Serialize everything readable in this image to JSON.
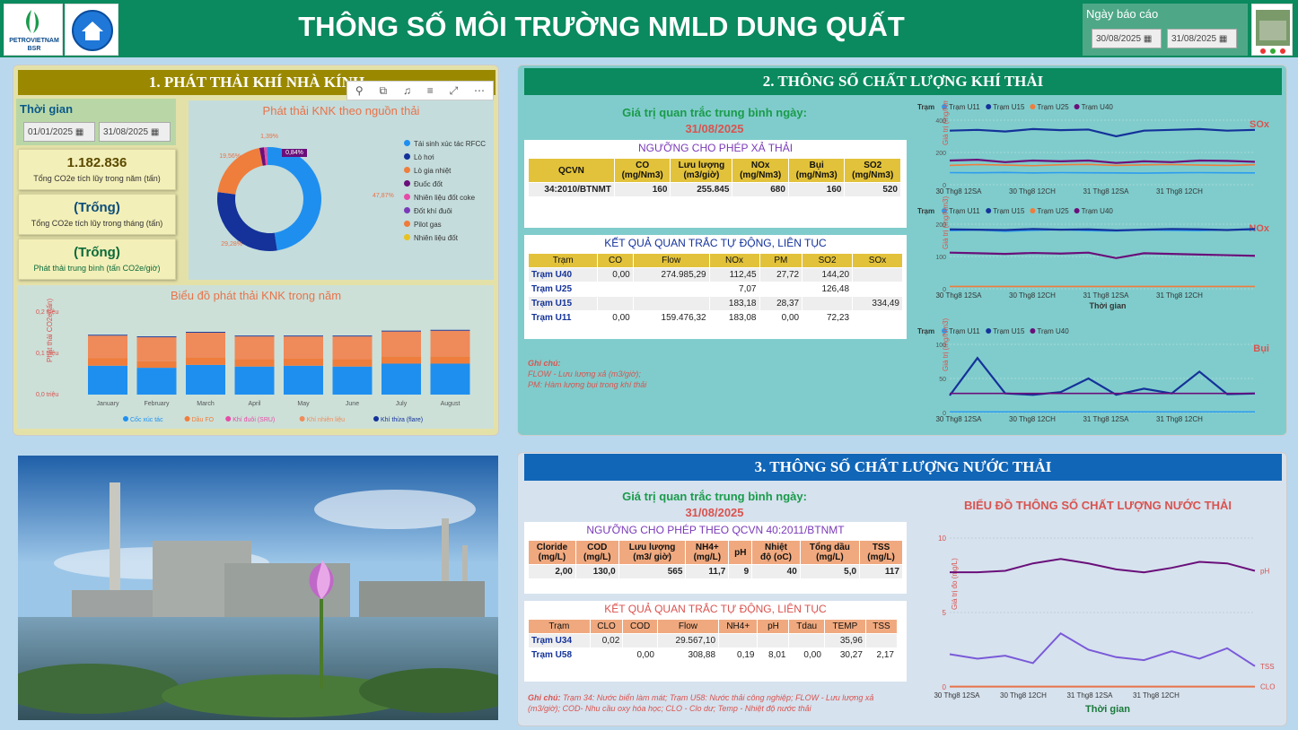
{
  "header": {
    "title": "THÔNG SỐ MÔI TRƯỜNG NMLD DUNG QUẤT",
    "logo_text_1": "PETROVIETNAM",
    "logo_text_2": "BSR",
    "report_date_label": "Ngày báo cáo",
    "report_date_from": "30/08/2025",
    "report_date_to": "31/08/2025"
  },
  "colors": {
    "header": "#0a8a5e",
    "section1": "#9a8900",
    "section2": "#0a8a5e",
    "section3": "#1166b7",
    "tableHeader": "#e2c23a",
    "waterHeader": "#f0a97f"
  },
  "s1": {
    "title": "1. PHÁT THẢI KHÍ NHÀ KÍNH",
    "time_label": "Thời gian",
    "date_from": "01/01/2025",
    "date_to": "31/08/2025",
    "kpi1_value": "1.182.836",
    "kpi1_label": "Tổng CO2e tích lũy trong năm (tấn)",
    "kpi2_value": "(Trống)",
    "kpi2_label": "Tổng CO2e tích lũy trong tháng (tấn)",
    "kpi3_value": "(Trống)",
    "kpi3_label": "Phát thải trung bình (tấn CO2e/giờ)",
    "donut_title": "Phát thải KNK theo nguồn thải",
    "donut_labels": [
      "47,87%",
      "29,28%",
      "19,56%",
      "1,39%",
      "0,84%"
    ],
    "legend": [
      {
        "name": "Tái sinh xúc tác RFCC",
        "color": "#1f8fef"
      },
      {
        "name": "Lò hơi",
        "color": "#14329a"
      },
      {
        "name": "Lò gia nhiệt",
        "color": "#ef7d3c"
      },
      {
        "name": "Đuốc đốt",
        "color": "#6a0f7a"
      },
      {
        "name": "Nhiên liệu đốt coke",
        "color": "#e64ba7"
      },
      {
        "name": "Đốt khí đuôi",
        "color": "#7a3ab8"
      },
      {
        "name": "Pilot gas",
        "color": "#f07a3a"
      },
      {
        "name": "Nhiên liệu đốt",
        "color": "#e8c21f"
      }
    ],
    "bar_title": "Biểu đồ phát thải KNK trong năm",
    "bar_ylabel": "Phát thải CO2e(tấn)",
    "bar_yticks": [
      "0,2 triệu",
      "0,1 triệu",
      "0,0 triệu"
    ],
    "bar_legend": [
      {
        "name": "Cốc xúc tác",
        "color": "#1f8fef"
      },
      {
        "name": "Dầu FO",
        "color": "#ef7d3c"
      },
      {
        "name": "Khí đuôi (SRU)",
        "color": "#e64ba7"
      },
      {
        "name": "Khí nhiên liệu",
        "color": "#f08c5a"
      },
      {
        "name": "Khí thừa (flare)",
        "color": "#14329a"
      }
    ],
    "toolbar_icons": [
      "pin-icon",
      "copy-icon",
      "bell-icon",
      "filter-icon",
      "expand-icon",
      "more-icon"
    ]
  },
  "chart_data": [
    {
      "type": "pie",
      "title": "Phát thải KNK theo nguồn thải",
      "labels": [
        "Tái sinh xúc tác RFCC",
        "Lò hơi",
        "Lò gia nhiệt",
        "Đuốc đốt",
        "Nhiên liệu đốt coke"
      ],
      "values": [
        47.87,
        29.28,
        19.56,
        1.39,
        0.84
      ]
    },
    {
      "type": "bar",
      "title": "Biểu đồ phát thải KNK trong năm",
      "categories": [
        "January",
        "February",
        "March",
        "April",
        "May",
        "June",
        "July",
        "August"
      ],
      "series": [
        {
          "name": "Cốc xúc tác",
          "values": [
            0.07,
            0.065,
            0.072,
            0.068,
            0.07,
            0.068,
            0.075,
            0.075
          ]
        },
        {
          "name": "Dầu FO",
          "values": [
            0.018,
            0.016,
            0.018,
            0.018,
            0.017,
            0.018,
            0.018,
            0.018
          ]
        },
        {
          "name": "Khí nhiên liệu",
          "values": [
            0.055,
            0.058,
            0.06,
            0.055,
            0.054,
            0.055,
            0.06,
            0.062
          ]
        },
        {
          "name": "Khí thừa (flare)",
          "values": [
            0.002,
            0.002,
            0.002,
            0.002,
            0.002,
            0.002,
            0.002,
            0.002
          ]
        }
      ],
      "ylabel": "Phát thải CO2e(tấn)",
      "ylim": [
        0,
        0.2
      ]
    },
    {
      "type": "line",
      "title": "SOx",
      "xlabel": "",
      "ylabel": "Giá trị (mg/Nm3)",
      "ylim": [
        0,
        400
      ],
      "xticks": [
        "30 Thg8 12SA",
        "30 Thg8 12CH",
        "31 Thg8 12SA",
        "31 Thg8 12CH"
      ],
      "series": [
        {
          "name": "Trạm U11",
          "values": [
            75,
            74,
            76,
            73,
            75,
            74,
            73,
            72,
            74,
            75,
            74,
            73
          ]
        },
        {
          "name": "Trạm U15",
          "values": [
            335,
            340,
            330,
            345,
            338,
            342,
            300,
            335,
            340,
            345,
            335,
            340
          ]
        },
        {
          "name": "Trạm U25",
          "values": [
            120,
            125,
            122,
            118,
            124,
            126,
            120,
            123,
            125,
            122,
            120,
            124
          ]
        },
        {
          "name": "Trạm U40",
          "values": [
            150,
            155,
            140,
            150,
            145,
            150,
            135,
            145,
            140,
            150,
            148,
            142
          ]
        }
      ]
    },
    {
      "type": "line",
      "title": "NOx",
      "xlabel": "Thời gian",
      "ylabel": "Giá trị (mg/Nm3)",
      "ylim": [
        0,
        200
      ],
      "xticks": [
        "30 Thg8 12SA",
        "30 Thg8 12CH",
        "31 Thg8 12SA",
        "31 Thg8 12CH"
      ],
      "series": [
        {
          "name": "Trạm U11",
          "values": [
            180,
            182,
            178,
            181,
            183,
            180,
            179,
            182,
            181,
            180,
            183,
            182
          ]
        },
        {
          "name": "Trạm U15",
          "values": [
            184,
            183,
            182,
            185,
            183,
            184,
            181,
            183,
            185,
            184,
            182,
            185
          ]
        },
        {
          "name": "Trạm U25",
          "values": [
            7,
            7,
            7,
            7,
            7,
            7,
            7,
            7,
            7,
            7,
            7,
            7
          ]
        },
        {
          "name": "Trạm U40",
          "values": [
            112,
            110,
            108,
            111,
            109,
            112,
            95,
            110,
            108,
            106,
            104,
            102
          ]
        }
      ]
    },
    {
      "type": "line",
      "title": "Bụi",
      "xlabel": "",
      "ylabel": "Giá trị (mg/Nm3)",
      "ylim": [
        0,
        100
      ],
      "xticks": [
        "30 Thg8 12SA",
        "30 Thg8 12CH",
        "31 Thg8 12SA",
        "31 Thg8 12CH"
      ],
      "series": [
        {
          "name": "Trạm U11",
          "values": [
            1,
            1,
            1,
            1,
            1,
            1,
            1,
            1,
            1,
            1,
            1,
            1
          ]
        },
        {
          "name": "Trạm U15",
          "values": [
            25,
            80,
            28,
            26,
            30,
            50,
            26,
            35,
            28,
            60,
            27,
            28
          ]
        },
        {
          "name": "Trạm U40",
          "values": [
            28,
            28,
            28,
            28,
            28,
            28,
            28,
            28,
            28,
            28,
            28,
            28
          ]
        }
      ]
    },
    {
      "type": "line",
      "title": "BIỂU ĐỒ THÔNG SỐ CHẤT LƯỢNG NƯỚC THẢI",
      "xlabel": "Thời gian",
      "ylabel": "Giá trị đo (mg/L)",
      "ylim": [
        0,
        10
      ],
      "xticks": [
        "30 Thg8 12SA",
        "30 Thg8 12CH",
        "31 Thg8 12SA",
        "31 Thg8 12CH"
      ],
      "series": [
        {
          "name": "pH",
          "values": [
            7.7,
            7.7,
            7.8,
            8.3,
            8.6,
            8.3,
            7.9,
            7.7,
            8.0,
            8.4,
            8.3,
            7.8
          ]
        },
        {
          "name": "TSS",
          "values": [
            2.2,
            1.9,
            2.1,
            1.6,
            3.6,
            2.5,
            2.0,
            1.8,
            2.4,
            1.9,
            2.6,
            1.4
          ]
        },
        {
          "name": "CLO",
          "values": [
            0.02,
            0.02,
            0.02,
            0.02,
            0.02,
            0.02,
            0.02,
            0.02,
            0.02,
            0.02,
            0.02,
            0.02
          ]
        }
      ]
    }
  ],
  "s2": {
    "title": "2. THÔNG SỐ CHẤT LƯỢNG KHÍ THẢI",
    "avg_label": "Giá trị quan trắc trung bình ngày:",
    "avg_date": "31/08/2025",
    "limit_title": "NGƯỠNG CHO PHÉP XẢ THẢI",
    "limit_headers": [
      "QCVN",
      "CO\n(mg/Nm3)",
      "Lưu lượng\n(m3/giờ)",
      "NOx\n(mg/Nm3)",
      "Bụi\n(mg/Nm3)",
      "SO2\n(mg/Nm3)"
    ],
    "limit_row": [
      "34:2010/BTNMT",
      "160",
      "255.845",
      "680",
      "160",
      "520"
    ],
    "auto_title": "KẾT QUẢ QUAN TRẮC TỰ ĐỘNG, LIÊN TỤC",
    "auto_headers": [
      "Trạm",
      "CO",
      "Flow",
      "NOx",
      "PM",
      "SO2",
      "SOx"
    ],
    "auto_rows": [
      [
        "Trạm U40",
        "0,00",
        "274.985,29",
        "112,45",
        "27,72",
        "144,20",
        ""
      ],
      [
        "Trạm U25",
        "",
        "",
        "7,07",
        "",
        "126,48",
        ""
      ],
      [
        "Trạm U15",
        "",
        "",
        "183,18",
        "28,37",
        "",
        "334,49"
      ],
      [
        "Trạm U11",
        "0,00",
        "159.476,32",
        "183,08",
        "0,00",
        "72,23",
        ""
      ]
    ],
    "note_title": "Ghi chú:",
    "note_1": "FLOW - Lưu lượng xả (m3/giờ);",
    "note_2": "PM: Hàm lượng bụi trong khí thải",
    "legend_label": "Trạm",
    "station_colors": {
      "U11": "#2b9cf0",
      "U15": "#14329a",
      "U25": "#ef7d3c",
      "U40": "#6a0f7a"
    },
    "sox_title": "SOx",
    "nox_title": "NOx",
    "dust_title": "Bụi",
    "ylabel": "Giá trị (mg/Nm3)",
    "xlabel": "Thời gian",
    "legend_sox": [
      "Trạm U11",
      "Trạm U15",
      "Trạm U25",
      "Trạm U40"
    ],
    "legend_nox": [
      "Trạm U11",
      "Trạm U15",
      "Trạm U25",
      "Trạm U40"
    ],
    "legend_dust": [
      "Trạm U11",
      "Trạm U15",
      "Trạm U40"
    ],
    "xticks": [
      "30 Thg8 12SA",
      "30 Thg8 12CH",
      "31 Thg8 12SA",
      "31 Thg8 12CH"
    ],
    "sox_yticks": [
      "400",
      "200",
      "0"
    ],
    "nox_yticks": [
      "200",
      "100",
      "0"
    ],
    "dust_yticks": [
      "100",
      "50",
      "0"
    ]
  },
  "s3": {
    "title": "3. THÔNG SỐ CHẤT LƯỢNG NƯỚC THẢI",
    "avg_label": "Giá trị quan trắc trung bình ngày:",
    "avg_date": "31/08/2025",
    "limit_title": "NGƯỠNG CHO PHÉP THEO QCVN 40:2011/BTNMT",
    "limit_headers": [
      "Cloride\n(mg/L)",
      "COD\n(mg/L)",
      "Lưu lượng\n(m3/ giờ)",
      "NH4+\n(mg/L)",
      "pH",
      "Nhiệt\nđộ (oC)",
      "Tổng dầu\n(mg/L)",
      "TSS\n(mg/L)"
    ],
    "limit_row": [
      "2,00",
      "130,0",
      "565",
      "11,7",
      "9",
      "40",
      "5,0",
      "117"
    ],
    "auto_title": "KẾT QUẢ QUAN TRẮC TỰ ĐỘNG, LIÊN TỤC",
    "auto_headers": [
      "Trạm",
      "CLO",
      "COD",
      "Flow",
      "NH4+",
      "pH",
      "Tdau",
      "TEMP",
      "TSS"
    ],
    "auto_rows": [
      [
        "Trạm U34",
        "0,02",
        "",
        "29.567,10",
        "",
        "",
        "",
        "35,96",
        ""
      ],
      [
        "Trạm U58",
        "",
        "0,00",
        "308,88",
        "0,19",
        "8,01",
        "0,00",
        "30,27",
        "2,17"
      ]
    ],
    "note_title": "Ghi chú:",
    "note_text": "Trạm 34: Nước biển làm mát; Trạm U58: Nước thải công nghiệp; FLOW - Lưu lượng xả (m3/giờ);  COD- Nhu cầu oxy hóa học; CLO - Clo dư; Temp - Nhiệt độ nước thải",
    "chart_title": "BIỂU ĐỒ THÔNG SỐ CHẤT LƯỢNG NƯỚC THẢI",
    "ylabel": "Giá trị đo (mg/L)",
    "xlabel": "Thời gian",
    "yticks": [
      "10",
      "5",
      "0"
    ],
    "xticks": [
      "30 Thg8 12SA",
      "30 Thg8 12CH",
      "31 Thg8 12SA",
      "31 Thg8 12CH"
    ],
    "series_labels": [
      "pH",
      "TSS",
      "CLO"
    ]
  }
}
